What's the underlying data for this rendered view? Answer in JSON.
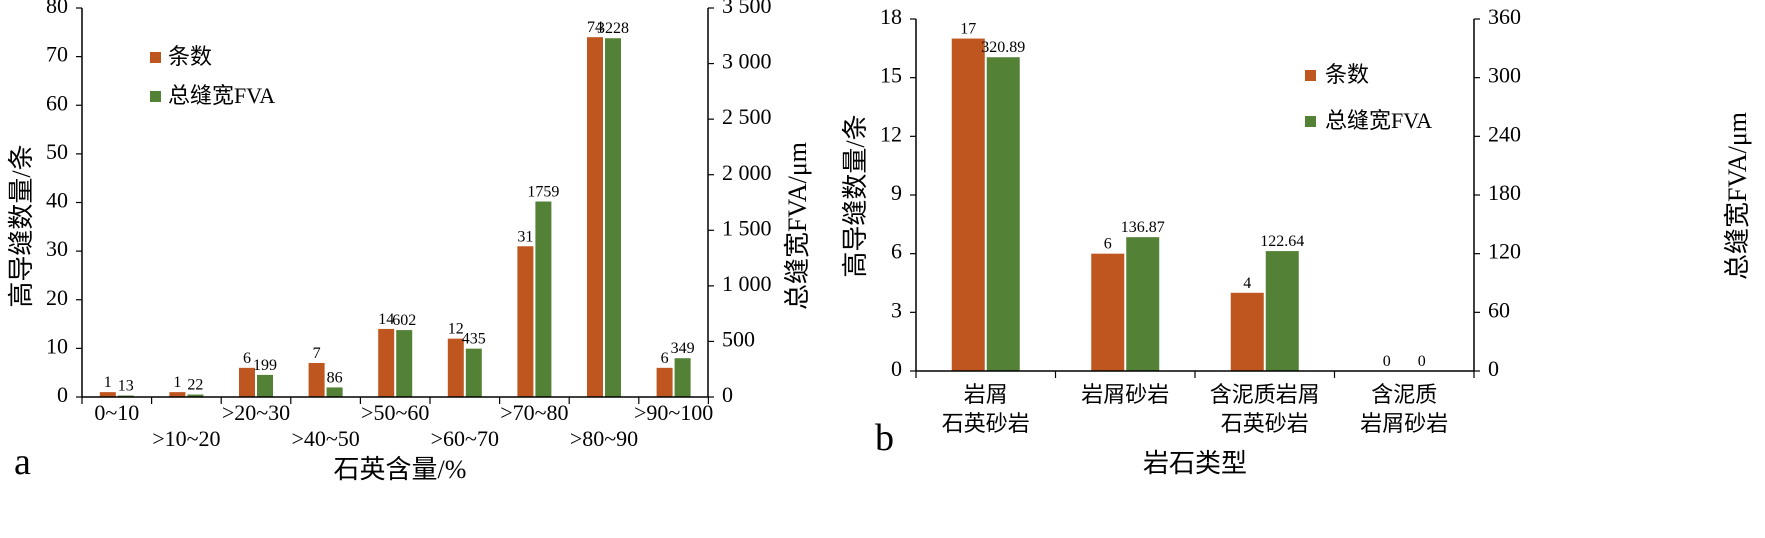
{
  "colors": {
    "count": "#C0561F",
    "fva": "#538135"
  },
  "chart_data": [
    {
      "type": "bar",
      "panel_label": "a",
      "categories": [
        "0~10",
        ">10~20",
        ">20~30",
        ">40~50",
        ">50~60",
        ">60~70",
        ">70~80",
        ">80~90",
        ">90~100"
      ],
      "series": [
        {
          "name": "条数",
          "axis": "left",
          "values": [
            1,
            1,
            6,
            7,
            14,
            12,
            31,
            74,
            6
          ]
        },
        {
          "name": "总缝宽FVA",
          "axis": "right",
          "values": [
            13,
            22,
            199,
            86,
            602,
            435,
            1759,
            3228,
            349
          ]
        }
      ],
      "xlabel": "石英含量/%",
      "ylabel": "高导缝数量/条",
      "y2label": "总缝宽FVA/μm",
      "ylim": [
        0,
        80
      ],
      "y2lim": [
        0,
        3500
      ],
      "yticks": [
        "0",
        "10",
        "20",
        "30",
        "40",
        "50",
        "60",
        "70",
        "80"
      ],
      "y2ticks": [
        "0",
        "500",
        "1 000",
        "1 500",
        "2 000",
        "2 500",
        "3 000",
        "3 500"
      ],
      "legend": "top-left"
    },
    {
      "type": "bar",
      "panel_label": "b",
      "categories": [
        [
          "岩屑",
          "石英砂岩"
        ],
        [
          "岩屑砂岩"
        ],
        [
          "含泥质岩屑",
          "石英砂岩"
        ],
        [
          "含泥质",
          "岩屑砂岩"
        ]
      ],
      "series": [
        {
          "name": "条数",
          "axis": "left",
          "values": [
            17,
            6,
            4,
            0
          ]
        },
        {
          "name": "总缝宽FVA",
          "axis": "right",
          "values": [
            320.89,
            136.87,
            122.64,
            0
          ]
        }
      ],
      "data_labels": [
        [
          "17",
          "6",
          "4",
          "0"
        ],
        [
          "320.89",
          "136.87",
          "122.64",
          "0"
        ]
      ],
      "xlabel": "岩石类型",
      "ylabel": "高导缝数量/条",
      "y2label": "总缝宽FVA/μm",
      "ylim": [
        0,
        18
      ],
      "y2lim": [
        0,
        360
      ],
      "yticks": [
        "0",
        "3",
        "6",
        "9",
        "12",
        "15",
        "18"
      ],
      "y2ticks": [
        "0",
        "60",
        "120",
        "180",
        "240",
        "300",
        "360"
      ],
      "legend": "top-right"
    }
  ]
}
